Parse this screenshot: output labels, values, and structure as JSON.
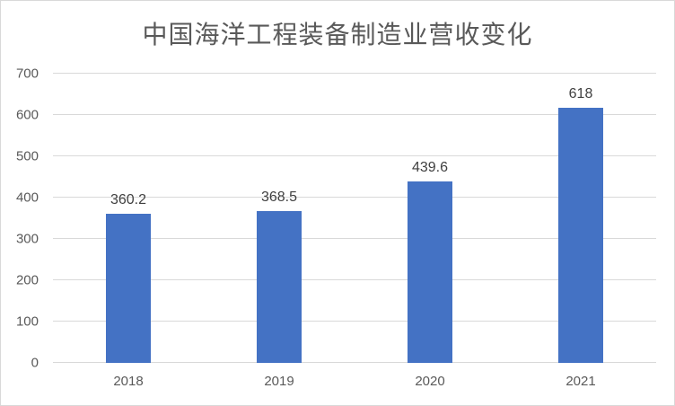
{
  "frame": {
    "border_color": "#d9d9d9",
    "background": "#ffffff"
  },
  "chart_data": {
    "type": "bar",
    "title": "中国海洋工程装备制造业营收变化",
    "categories": [
      "2018",
      "2019",
      "2020",
      "2021"
    ],
    "values": [
      360.2,
      368.5,
      439.6,
      618
    ],
    "data_labels": [
      "360.2",
      "368.5",
      "439.6",
      "618"
    ],
    "yticks": [
      0,
      100,
      200,
      300,
      400,
      500,
      600,
      700
    ],
    "ylim": [
      0,
      700
    ],
    "xlabel": "",
    "ylabel": "",
    "grid": true,
    "legend": "none",
    "colors": {
      "bar": "#4472c4",
      "gridline": "#d9d9d9",
      "axis_text": "#595959",
      "data_label_text": "#404040",
      "title_text": "#595959"
    }
  }
}
